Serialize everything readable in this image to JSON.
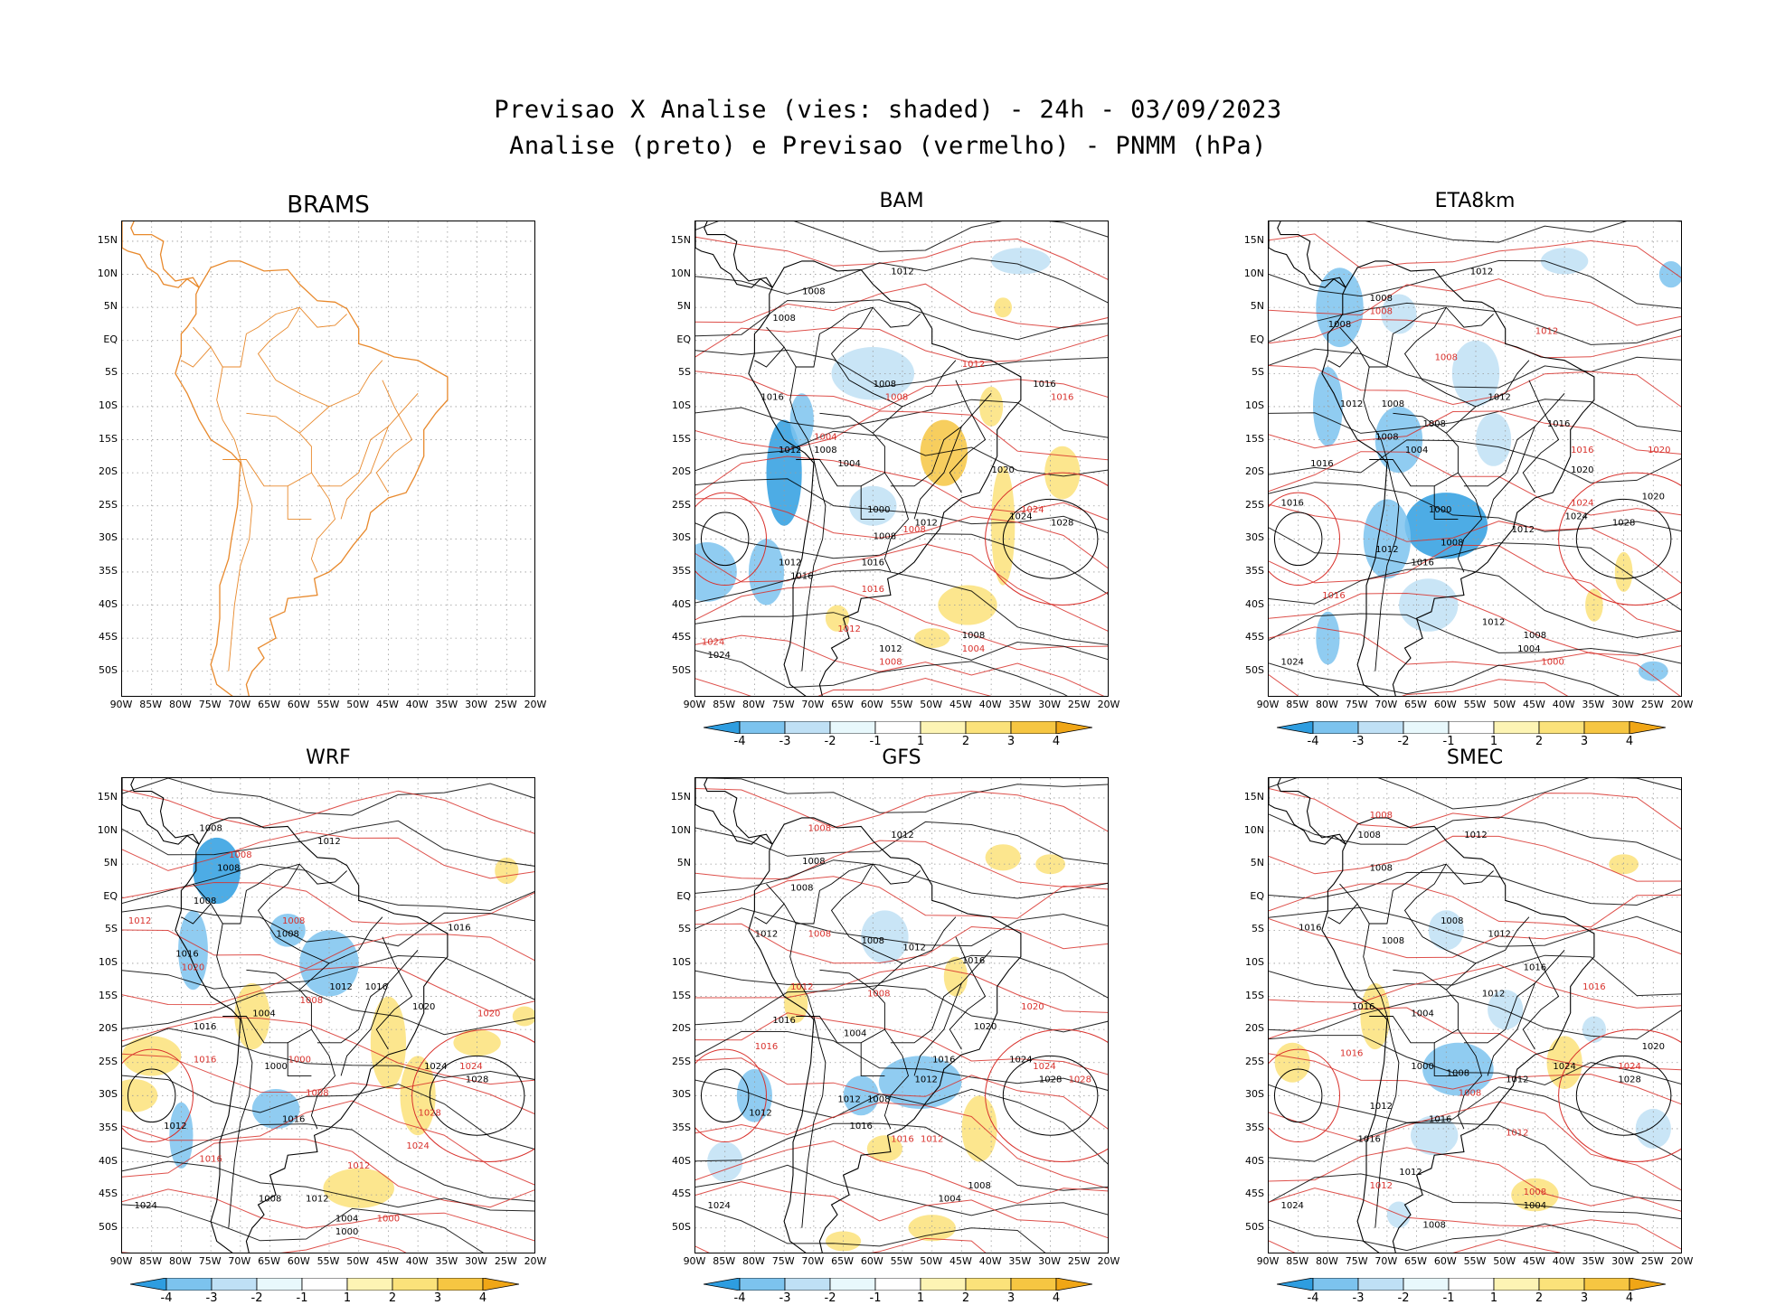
{
  "title": {
    "line1": "Previsao X Analise (vies: shaded) - 24h - 03/09/2023",
    "line2": "Analise (preto) e Previsao (vermelho) - PNMM (hPa)"
  },
  "lat_ticks": [
    "15N",
    "10N",
    "5N",
    "EQ",
    "5S",
    "10S",
    "15S",
    "20S",
    "25S",
    "30S",
    "35S",
    "40S",
    "45S",
    "50S"
  ],
  "lon_ticks": [
    "90W",
    "85W",
    "80W",
    "75W",
    "70W",
    "65W",
    "60W",
    "55W",
    "50W",
    "45W",
    "40W",
    "35W",
    "30W",
    "25W",
    "20W"
  ],
  "colorbar": {
    "labels": [
      "-4",
      "-3",
      "-2",
      "-1",
      "1",
      "2",
      "3",
      "4"
    ],
    "colors": [
      "#2e9de0",
      "#7cc3ee",
      "#bfe0f5",
      "#e8f8fc",
      "#ffffff",
      "#fdf4b4",
      "#fbe27a",
      "#f6c642",
      "#f0a616"
    ]
  },
  "colors": {
    "analysis": "#000000",
    "forecast": "#d8312c",
    "coast_brams": "#e8892c"
  },
  "panels": [
    {
      "id": "brams",
      "title": "BRAMS",
      "has_colorbar": false,
      "contour_labels": []
    },
    {
      "id": "bam",
      "title": "BAM",
      "has_colorbar": true,
      "contour_labels": [
        {
          "t": "1012",
          "c": "k",
          "lon": -55,
          "lat": 10
        },
        {
          "t": "1008",
          "c": "k",
          "lon": -70,
          "lat": 7
        },
        {
          "t": "1008",
          "c": "k",
          "lon": -75,
          "lat": 3
        },
        {
          "t": "1008",
          "c": "k",
          "lon": -58,
          "lat": -7
        },
        {
          "t": "1008",
          "c": "r",
          "lon": -56,
          "lat": -9
        },
        {
          "t": "1012",
          "c": "r",
          "lon": -43,
          "lat": -4
        },
        {
          "t": "1016",
          "c": "k",
          "lon": -31,
          "lat": -7
        },
        {
          "t": "1016",
          "c": "r",
          "lon": -28,
          "lat": -9
        },
        {
          "t": "1016",
          "c": "k",
          "lon": -77,
          "lat": -9
        },
        {
          "t": "1012",
          "c": "k",
          "lon": -74,
          "lat": -17
        },
        {
          "t": "1008",
          "c": "k",
          "lon": -68,
          "lat": -17
        },
        {
          "t": "1004",
          "c": "k",
          "lon": -64,
          "lat": -19
        },
        {
          "t": "1004",
          "c": "r",
          "lon": -68,
          "lat": -15
        },
        {
          "t": "1020",
          "c": "k",
          "lon": -38,
          "lat": -20
        },
        {
          "t": "1000",
          "c": "k",
          "lon": -59,
          "lat": -26
        },
        {
          "t": "1024",
          "c": "r",
          "lon": -33,
          "lat": -26
        },
        {
          "t": "1024",
          "c": "k",
          "lon": -35,
          "lat": -27
        },
        {
          "t": "1028",
          "c": "k",
          "lon": -28,
          "lat": -28
        },
        {
          "t": "1012",
          "c": "k",
          "lon": -51,
          "lat": -28
        },
        {
          "t": "1008",
          "c": "r",
          "lon": -53,
          "lat": -29
        },
        {
          "t": "1008",
          "c": "k",
          "lon": -58,
          "lat": -30
        },
        {
          "t": "1012",
          "c": "k",
          "lon": -74,
          "lat": -34
        },
        {
          "t": "1016",
          "c": "k",
          "lon": -60,
          "lat": -34
        },
        {
          "t": "1016",
          "c": "k",
          "lon": -72,
          "lat": -36
        },
        {
          "t": "1016",
          "c": "r",
          "lon": -60,
          "lat": -38
        },
        {
          "t": "1012",
          "c": "r",
          "lon": -64,
          "lat": -44
        },
        {
          "t": "1008",
          "c": "k",
          "lon": -43,
          "lat": -45
        },
        {
          "t": "1004",
          "c": "r",
          "lon": -43,
          "lat": -47
        },
        {
          "t": "1012",
          "c": "k",
          "lon": -57,
          "lat": -47
        },
        {
          "t": "1008",
          "c": "r",
          "lon": -57,
          "lat": -49
        },
        {
          "t": "1024",
          "c": "r",
          "lon": -87,
          "lat": -46
        },
        {
          "t": "1024",
          "c": "k",
          "lon": -86,
          "lat": -48
        }
      ]
    },
    {
      "id": "eta8km",
      "title": "ETA8km",
      "has_colorbar": true,
      "contour_labels": [
        {
          "t": "1012",
          "c": "k",
          "lon": -54,
          "lat": 10
        },
        {
          "t": "1008",
          "c": "k",
          "lon": -71,
          "lat": 6
        },
        {
          "t": "1008",
          "c": "r",
          "lon": -71,
          "lat": 4
        },
        {
          "t": "1008",
          "c": "k",
          "lon": -78,
          "lat": 2
        },
        {
          "t": "1008",
          "c": "r",
          "lon": -60,
          "lat": -3
        },
        {
          "t": "1012",
          "c": "r",
          "lon": -43,
          "lat": 1
        },
        {
          "t": "1012",
          "c": "k",
          "lon": -51,
          "lat": -9
        },
        {
          "t": "1012",
          "c": "k",
          "lon": -76,
          "lat": -10
        },
        {
          "t": "1008",
          "c": "k",
          "lon": -69,
          "lat": -10
        },
        {
          "t": "1008",
          "c": "k",
          "lon": -62,
          "lat": -13
        },
        {
          "t": "1016",
          "c": "k",
          "lon": -41,
          "lat": -13
        },
        {
          "t": "1008",
          "c": "k",
          "lon": -70,
          "lat": -15
        },
        {
          "t": "1004",
          "c": "k",
          "lon": -65,
          "lat": -17
        },
        {
          "t": "1016",
          "c": "k",
          "lon": -81,
          "lat": -19
        },
        {
          "t": "1016",
          "c": "r",
          "lon": -37,
          "lat": -17
        },
        {
          "t": "1020",
          "c": "k",
          "lon": -37,
          "lat": -20
        },
        {
          "t": "1020",
          "c": "r",
          "lon": -24,
          "lat": -17
        },
        {
          "t": "1016",
          "c": "k",
          "lon": -86,
          "lat": -25
        },
        {
          "t": "1000",
          "c": "k",
          "lon": -61,
          "lat": -26
        },
        {
          "t": "1020",
          "c": "k",
          "lon": -25,
          "lat": -24
        },
        {
          "t": "1024",
          "c": "r",
          "lon": -37,
          "lat": -25
        },
        {
          "t": "1024",
          "c": "k",
          "lon": -38,
          "lat": -27
        },
        {
          "t": "1028",
          "c": "k",
          "lon": -30,
          "lat": -28
        },
        {
          "t": "1008",
          "c": "k",
          "lon": -59,
          "lat": -31
        },
        {
          "t": "1012",
          "c": "k",
          "lon": -70,
          "lat": -32
        },
        {
          "t": "1016",
          "c": "k",
          "lon": -64,
          "lat": -34
        },
        {
          "t": "1012",
          "c": "k",
          "lon": -47,
          "lat": -29
        },
        {
          "t": "1016",
          "c": "r",
          "lon": -79,
          "lat": -39
        },
        {
          "t": "1012",
          "c": "k",
          "lon": -52,
          "lat": -43
        },
        {
          "t": "1008",
          "c": "k",
          "lon": -45,
          "lat": -45
        },
        {
          "t": "1004",
          "c": "k",
          "lon": -46,
          "lat": -47
        },
        {
          "t": "1000",
          "c": "r",
          "lon": -42,
          "lat": -49
        },
        {
          "t": "1024",
          "c": "k",
          "lon": -86,
          "lat": -49
        }
      ]
    },
    {
      "id": "wrf",
      "title": "WRF",
      "has_colorbar": true,
      "contour_labels": [
        {
          "t": "1008",
          "c": "k",
          "lon": -75,
          "lat": 10
        },
        {
          "t": "1012",
          "c": "k",
          "lon": -55,
          "lat": 8
        },
        {
          "t": "1008",
          "c": "r",
          "lon": -70,
          "lat": 6
        },
        {
          "t": "1008",
          "c": "k",
          "lon": -72,
          "lat": 4
        },
        {
          "t": "1008",
          "c": "k",
          "lon": -76,
          "lat": -1
        },
        {
          "t": "1012",
          "c": "r",
          "lon": -87,
          "lat": -4
        },
        {
          "t": "1008",
          "c": "r",
          "lon": -61,
          "lat": -4
        },
        {
          "t": "1016",
          "c": "k",
          "lon": -33,
          "lat": -5
        },
        {
          "t": "1008",
          "c": "k",
          "lon": -62,
          "lat": -6
        },
        {
          "t": "1016",
          "c": "k",
          "lon": -79,
          "lat": -9
        },
        {
          "t": "1020",
          "c": "r",
          "lon": -78,
          "lat": -11
        },
        {
          "t": "1012",
          "c": "k",
          "lon": -53,
          "lat": -14
        },
        {
          "t": "1016",
          "c": "k",
          "lon": -47,
          "lat": -14
        },
        {
          "t": "1008",
          "c": "r",
          "lon": -58,
          "lat": -16
        },
        {
          "t": "1004",
          "c": "k",
          "lon": -66,
          "lat": -18
        },
        {
          "t": "1020",
          "c": "k",
          "lon": -39,
          "lat": -17
        },
        {
          "t": "1020",
          "c": "r",
          "lon": -28,
          "lat": -18
        },
        {
          "t": "1016",
          "c": "k",
          "lon": -76,
          "lat": -20
        },
        {
          "t": "1000",
          "c": "r",
          "lon": -60,
          "lat": -25
        },
        {
          "t": "1000",
          "c": "k",
          "lon": -64,
          "lat": -26
        },
        {
          "t": "1016",
          "c": "r",
          "lon": -76,
          "lat": -25
        },
        {
          "t": "1024",
          "c": "k",
          "lon": -37,
          "lat": -26
        },
        {
          "t": "1024",
          "c": "r",
          "lon": -31,
          "lat": -26
        },
        {
          "t": "1028",
          "c": "k",
          "lon": -30,
          "lat": -28
        },
        {
          "t": "1012",
          "c": "k",
          "lon": -81,
          "lat": -35
        },
        {
          "t": "1008",
          "c": "r",
          "lon": -57,
          "lat": -30
        },
        {
          "t": "1016",
          "c": "k",
          "lon": -61,
          "lat": -34
        },
        {
          "t": "1028",
          "c": "r",
          "lon": -38,
          "lat": -33
        },
        {
          "t": "1024",
          "c": "r",
          "lon": -40,
          "lat": -38
        },
        {
          "t": "1012",
          "c": "r",
          "lon": -50,
          "lat": -41
        },
        {
          "t": "1016",
          "c": "r",
          "lon": -75,
          "lat": -40
        },
        {
          "t": "1008",
          "c": "k",
          "lon": -65,
          "lat": -46
        },
        {
          "t": "1012",
          "c": "k",
          "lon": -57,
          "lat": -46
        },
        {
          "t": "1004",
          "c": "k",
          "lon": -52,
          "lat": -49
        },
        {
          "t": "1000",
          "c": "k",
          "lon": -52,
          "lat": -51
        },
        {
          "t": "1000",
          "c": "r",
          "lon": -45,
          "lat": -49
        },
        {
          "t": "1024",
          "c": "k",
          "lon": -86,
          "lat": -47
        }
      ]
    },
    {
      "id": "gfs",
      "title": "GFS",
      "has_colorbar": true,
      "contour_labels": [
        {
          "t": "1008",
          "c": "r",
          "lon": -69,
          "lat": 10
        },
        {
          "t": "1012",
          "c": "k",
          "lon": -55,
          "lat": 9
        },
        {
          "t": "1008",
          "c": "k",
          "lon": -70,
          "lat": 5
        },
        {
          "t": "1008",
          "c": "k",
          "lon": -72,
          "lat": 1
        },
        {
          "t": "1012",
          "c": "k",
          "lon": -78,
          "lat": -6
        },
        {
          "t": "1008",
          "c": "r",
          "lon": -69,
          "lat": -6
        },
        {
          "t": "1008",
          "c": "k",
          "lon": -60,
          "lat": -7
        },
        {
          "t": "1012",
          "c": "k",
          "lon": -53,
          "lat": -8
        },
        {
          "t": "1016",
          "c": "k",
          "lon": -43,
          "lat": -10
        },
        {
          "t": "1012",
          "c": "r",
          "lon": -72,
          "lat": -14
        },
        {
          "t": "1008",
          "c": "r",
          "lon": -59,
          "lat": -15
        },
        {
          "t": "1016",
          "c": "k",
          "lon": -75,
          "lat": -19
        },
        {
          "t": "1004",
          "c": "k",
          "lon": -63,
          "lat": -21
        },
        {
          "t": "1020",
          "c": "k",
          "lon": -41,
          "lat": -20
        },
        {
          "t": "1020",
          "c": "r",
          "lon": -33,
          "lat": -17
        },
        {
          "t": "1016",
          "c": "r",
          "lon": -78,
          "lat": -23
        },
        {
          "t": "1024",
          "c": "k",
          "lon": -35,
          "lat": -25
        },
        {
          "t": "1024",
          "c": "r",
          "lon": -31,
          "lat": -26
        },
        {
          "t": "1028",
          "c": "k",
          "lon": -30,
          "lat": -28
        },
        {
          "t": "1028",
          "c": "r",
          "lon": -25,
          "lat": -28
        },
        {
          "t": "1016",
          "c": "k",
          "lon": -48,
          "lat": -25
        },
        {
          "t": "1012",
          "c": "k",
          "lon": -51,
          "lat": -28
        },
        {
          "t": "1012",
          "c": "k",
          "lon": -64,
          "lat": -31
        },
        {
          "t": "1008",
          "c": "k",
          "lon": -59,
          "lat": -31
        },
        {
          "t": "1012",
          "c": "k",
          "lon": -79,
          "lat": -33
        },
        {
          "t": "1016",
          "c": "k",
          "lon": -62,
          "lat": -35
        },
        {
          "t": "1016",
          "c": "r",
          "lon": -55,
          "lat": -37
        },
        {
          "t": "1012",
          "c": "r",
          "lon": -50,
          "lat": -37
        },
        {
          "t": "1008",
          "c": "k",
          "lon": -42,
          "lat": -44
        },
        {
          "t": "1004",
          "c": "k",
          "lon": -47,
          "lat": -46
        },
        {
          "t": "1024",
          "c": "k",
          "lon": -86,
          "lat": -47
        }
      ]
    },
    {
      "id": "smec",
      "title": "SMEC",
      "has_colorbar": true,
      "contour_labels": [
        {
          "t": "1008",
          "c": "r",
          "lon": -71,
          "lat": 12
        },
        {
          "t": "1012",
          "c": "k",
          "lon": -55,
          "lat": 9
        },
        {
          "t": "1008",
          "c": "k",
          "lon": -73,
          "lat": 9
        },
        {
          "t": "1008",
          "c": "k",
          "lon": -71,
          "lat": 4
        },
        {
          "t": "1016",
          "c": "k",
          "lon": -83,
          "lat": -5
        },
        {
          "t": "1008",
          "c": "k",
          "lon": -59,
          "lat": -4
        },
        {
          "t": "1008",
          "c": "k",
          "lon": -69,
          "lat": -7
        },
        {
          "t": "1012",
          "c": "k",
          "lon": -51,
          "lat": -6
        },
        {
          "t": "1016",
          "c": "k",
          "lon": -45,
          "lat": -11
        },
        {
          "t": "1012",
          "c": "k",
          "lon": -52,
          "lat": -15
        },
        {
          "t": "1016",
          "c": "k",
          "lon": -74,
          "lat": -17
        },
        {
          "t": "1004",
          "c": "k",
          "lon": -64,
          "lat": -18
        },
        {
          "t": "1016",
          "c": "r",
          "lon": -35,
          "lat": -14
        },
        {
          "t": "1020",
          "c": "k",
          "lon": -25,
          "lat": -23
        },
        {
          "t": "1016",
          "c": "r",
          "lon": -76,
          "lat": -24
        },
        {
          "t": "1000",
          "c": "k",
          "lon": -64,
          "lat": -26
        },
        {
          "t": "1024",
          "c": "k",
          "lon": -40,
          "lat": -26
        },
        {
          "t": "1024",
          "c": "r",
          "lon": -29,
          "lat": -26
        },
        {
          "t": "1028",
          "c": "k",
          "lon": -29,
          "lat": -28
        },
        {
          "t": "1012",
          "c": "k",
          "lon": -48,
          "lat": -28
        },
        {
          "t": "1008",
          "c": "k",
          "lon": -58,
          "lat": -27
        },
        {
          "t": "1008",
          "c": "r",
          "lon": -56,
          "lat": -30
        },
        {
          "t": "1012",
          "c": "k",
          "lon": -71,
          "lat": -32
        },
        {
          "t": "1016",
          "c": "k",
          "lon": -61,
          "lat": -34
        },
        {
          "t": "1016",
          "c": "k",
          "lon": -73,
          "lat": -37
        },
        {
          "t": "1012",
          "c": "r",
          "lon": -48,
          "lat": -36
        },
        {
          "t": "1012",
          "c": "k",
          "lon": -66,
          "lat": -42
        },
        {
          "t": "1012",
          "c": "r",
          "lon": -71,
          "lat": -44
        },
        {
          "t": "1008",
          "c": "r",
          "lon": -45,
          "lat": -45
        },
        {
          "t": "1004",
          "c": "k",
          "lon": -45,
          "lat": -47
        },
        {
          "t": "1008",
          "c": "k",
          "lon": -62,
          "lat": -50
        },
        {
          "t": "1024",
          "c": "k",
          "lon": -86,
          "lat": -47
        }
      ]
    }
  ]
}
